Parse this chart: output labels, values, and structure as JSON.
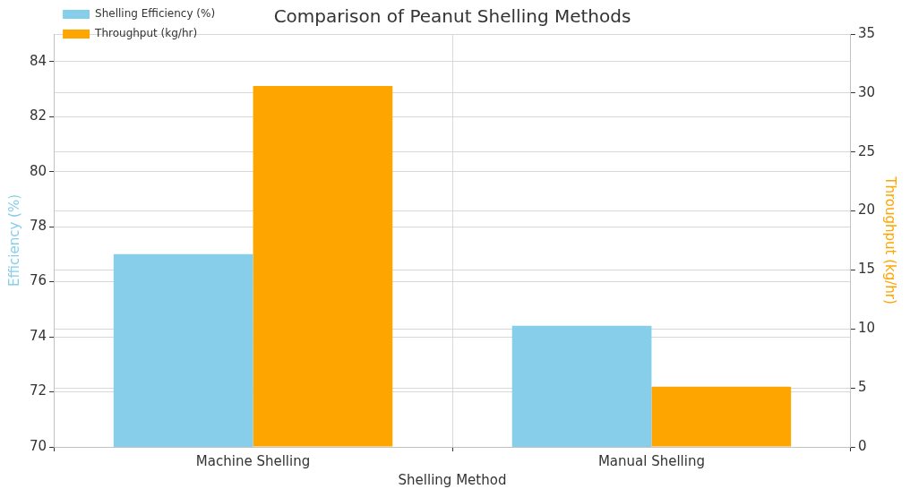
{
  "chart_data": {
    "type": "bar",
    "title": "Comparison of Peanut Shelling Methods",
    "xlabel": "Shelling Method",
    "ylabel": "Efficiency (%)",
    "y2label": "Throughput (kg/hr)",
    "categories": [
      "Machine Shelling",
      "Manual Shelling"
    ],
    "series": [
      {
        "name": "Shelling Efficiency (%)",
        "color": "#87ceeb",
        "values": [
          77,
          74.4
        ]
      },
      {
        "name": "Throughput (kg/hr)",
        "color": "#ffa500",
        "values": [
          30.6,
          5.1
        ],
        "axis": "y2"
      }
    ],
    "ylim": [
      70,
      85
    ],
    "yticks": [
      70,
      72,
      74,
      76,
      78,
      80,
      82,
      84
    ],
    "y2lim": [
      0,
      35
    ],
    "y2ticks": [
      0,
      5,
      10,
      15,
      20,
      25,
      30,
      35
    ],
    "grid": true,
    "legend": "top left"
  }
}
